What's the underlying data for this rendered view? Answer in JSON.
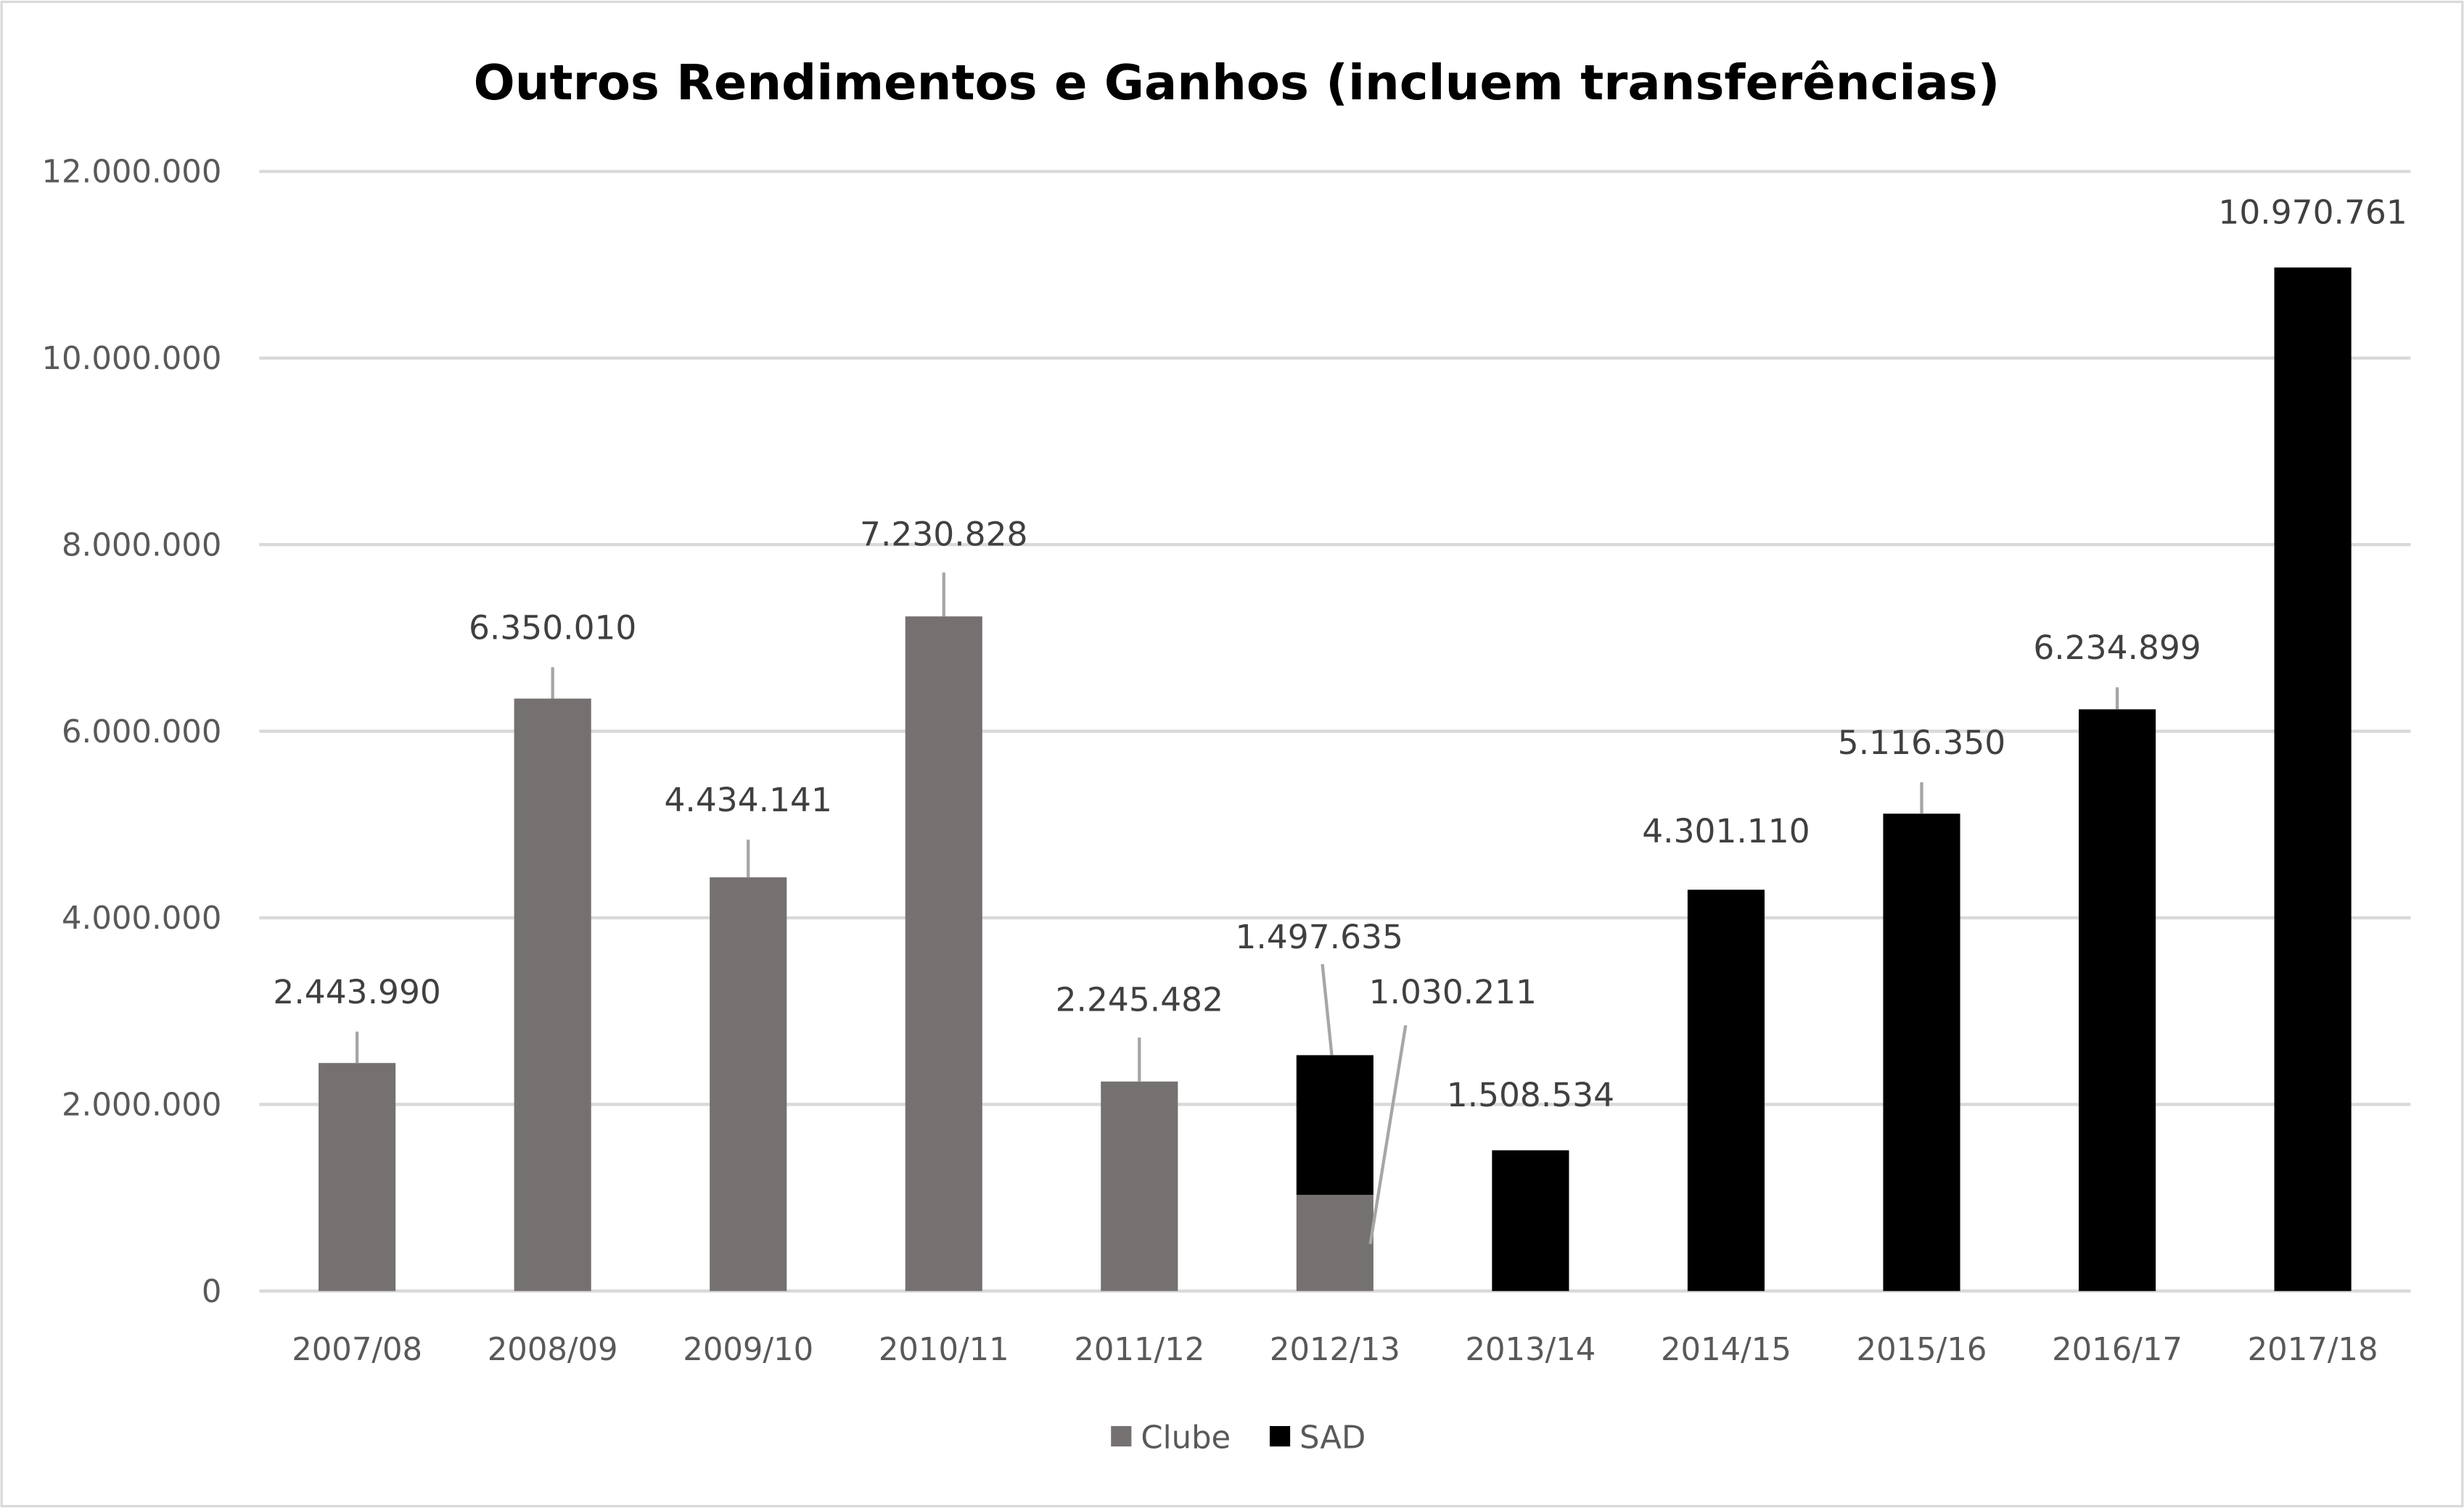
{
  "chart_data": {
    "type": "bar",
    "stacked": true,
    "title": "Outros Rendimentos e Ganhos (incluem transferências)",
    "xlabel": "",
    "ylabel": "",
    "ylim": [
      0,
      12000000
    ],
    "yticks": [
      0,
      2000000,
      4000000,
      6000000,
      8000000,
      10000000,
      12000000
    ],
    "ytick_labels": [
      "0",
      "2.000.000",
      "4.000.000",
      "6.000.000",
      "8.000.000",
      "10.000.000",
      "12.000.000"
    ],
    "grid": true,
    "legend_position": "bottom",
    "categories": [
      "2007/08",
      "2008/09",
      "2009/10",
      "2010/11",
      "2011/12",
      "2012/13",
      "2013/14",
      "2014/15",
      "2015/16",
      "2016/17",
      "2017/18"
    ],
    "series": [
      {
        "name": "Clube",
        "color": "#767171",
        "values": [
          2443990,
          6350010,
          4434141,
          7230828,
          2245482,
          1030211,
          null,
          null,
          null,
          null,
          null
        ],
        "labels": [
          "2.443.990",
          "6.350.010",
          "4.434.141",
          "7.230.828",
          "2.245.482",
          "1.030.211",
          null,
          null,
          null,
          null,
          null
        ]
      },
      {
        "name": "SAD",
        "color": "#000000",
        "values": [
          null,
          null,
          null,
          null,
          null,
          1497635,
          1508534,
          4301110,
          5116350,
          6234899,
          10970761
        ],
        "labels": [
          null,
          null,
          null,
          null,
          null,
          "1.497.635",
          "1.508.534",
          "4.301.110",
          "5.116.350",
          "6.234.899",
          "10.970.761"
        ]
      }
    ]
  }
}
